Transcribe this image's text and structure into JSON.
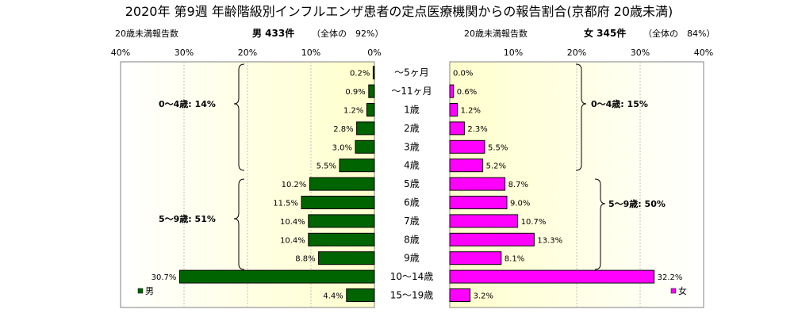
{
  "chart_data": {
    "type": "bar",
    "title": "2020年 第9週 年齢階級別インフルエンザ患者の定点医療機関からの報告割合(京都府 20歳未満)",
    "categories": [
      "～5ヶ月",
      "～11ヶ月",
      "1歳",
      "2歳",
      "3歳",
      "4歳",
      "5歳",
      "6歳",
      "7歳",
      "8歳",
      "9歳",
      "10～14歳",
      "15～19歳"
    ],
    "xlim": [
      0,
      40
    ],
    "ticks": [
      "40%",
      "30%",
      "20%",
      "10%",
      "0%",
      "10%",
      "20%",
      "30%",
      "40%"
    ],
    "series": [
      {
        "name": "男",
        "color": "#006400",
        "values": [
          0.2,
          0.9,
          1.2,
          2.8,
          3.0,
          5.5,
          10.2,
          11.5,
          10.4,
          10.4,
          8.8,
          30.7,
          4.4
        ],
        "labels": [
          "0.2%",
          "0.9%",
          "1.2%",
          "2.8%",
          "3.0%",
          "5.5%",
          "10.2%",
          "11.5%",
          "10.4%",
          "10.4%",
          "8.8%",
          "30.7%",
          "4.4%"
        ]
      },
      {
        "name": "女",
        "color": "#ff00ff",
        "values": [
          0.0,
          0.6,
          1.2,
          2.3,
          5.5,
          5.2,
          8.7,
          9.0,
          10.7,
          13.3,
          8.1,
          32.2,
          3.2
        ],
        "labels": [
          "0.0%",
          "0.6%",
          "1.2%",
          "2.3%",
          "5.5%",
          "5.2%",
          "8.7%",
          "9.0%",
          "10.7%",
          "13.3%",
          "8.1%",
          "32.2%",
          "3.2%"
        ]
      }
    ],
    "male_header": {
      "subtitle": "20歳未満報告数",
      "count": "男 433件",
      "share": "（全体の　92%）"
    },
    "female_header": {
      "subtitle": "20歳未満報告数",
      "count": "女 345件",
      "share": "（全体の　84%）"
    },
    "groups": {
      "male": [
        "0～4歳: 14%",
        "5～9歳: 51%"
      ],
      "female": [
        "0～4歳: 15%",
        "5～9歳: 50%"
      ]
    },
    "plot_background": [
      "#ffffcc",
      "#ffffff"
    ]
  }
}
